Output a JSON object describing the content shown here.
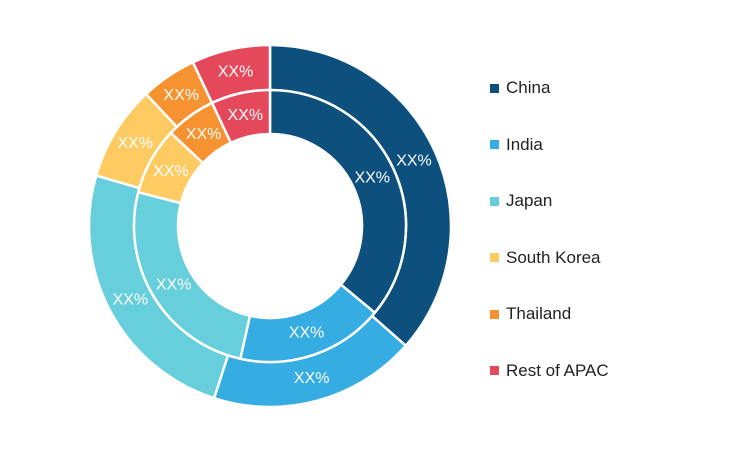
{
  "chart_data": {
    "type": "pie",
    "donut": true,
    "rings": 2,
    "legend_position": "right",
    "categories": [
      "China",
      "India",
      "Japan",
      "South Korea",
      "Thailand",
      "Rest of APAC"
    ],
    "colors": [
      "#0d507e",
      "#35ade3",
      "#66cfdb",
      "#fdcb62",
      "#f6922f",
      "#e6485b"
    ],
    "series": [
      {
        "ring": "outer",
        "values": [
          36.5,
          18.5,
          24.5,
          8.5,
          5,
          7
        ],
        "labels": [
          "XX%",
          "XX%",
          "XX%",
          "XX%",
          "XX%",
          "XX%"
        ]
      },
      {
        "ring": "inner",
        "values": [
          36,
          17.5,
          25.5,
          8,
          6,
          7
        ],
        "labels": [
          "XX%",
          "XX%",
          "XX%",
          "XX%",
          "XX%",
          "XX%"
        ]
      }
    ]
  }
}
